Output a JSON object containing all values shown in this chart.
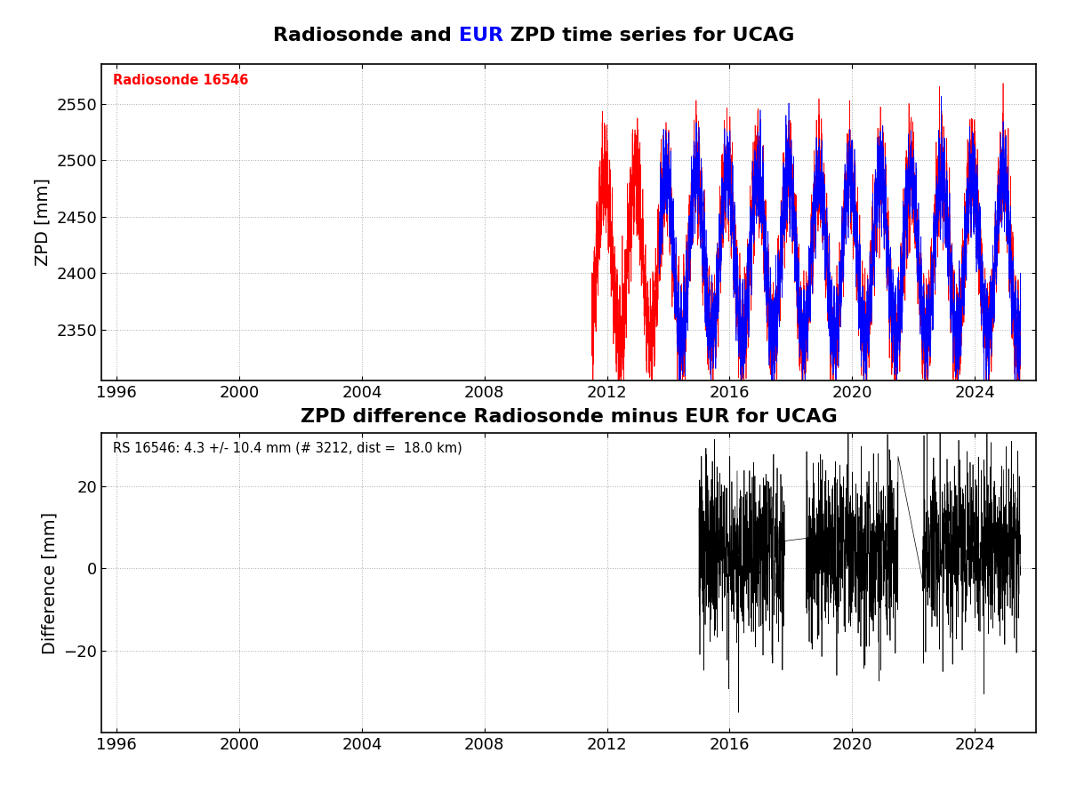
{
  "title1_parts": [
    {
      "text": "Radiosonde and ",
      "color": "black"
    },
    {
      "text": "EUR",
      "color": "#0000ff"
    },
    {
      "text": " ZPD time series for UCAG",
      "color": "black"
    }
  ],
  "title2": "ZPD difference Radiosonde minus EUR for UCAG",
  "ylabel1": "ZPD [mm]",
  "ylabel2": "Difference [mm]",
  "xlim": [
    1995.5,
    2026.0
  ],
  "xticks": [
    1996,
    2000,
    2004,
    2008,
    2012,
    2016,
    2020,
    2024
  ],
  "ylim1": [
    2305,
    2585
  ],
  "yticks1": [
    2350,
    2400,
    2450,
    2500,
    2550
  ],
  "ylim2": [
    -40,
    33
  ],
  "yticks2": [
    -20,
    0,
    20
  ],
  "radiosonde_label": "Radiosonde 16546",
  "diff_label": "RS 16546: 4.3 +/- 10.4 mm (# 3212, dist =  18.0 km)",
  "radiosonde_color": "#ff0000",
  "eur_color": "#0000ff",
  "diff_color": "#000000",
  "background_color": "#ffffff",
  "grid_color": "#999999",
  "title_fontsize": 16,
  "label_fontsize": 14,
  "tick_fontsize": 13,
  "annotation_fontsize": 10.5,
  "rs_data_start": 2011.5,
  "rs_data_end": 2025.5,
  "eur_data_start": 2013.7,
  "eur_data_end": 2025.5,
  "diff_data_start": 2015.0,
  "diff_data_end": 2025.5,
  "diff_gap1_start": 2017.8,
  "diff_gap1_end": 2018.5,
  "diff_gap2_start": 2021.5,
  "diff_gap2_end": 2022.3
}
